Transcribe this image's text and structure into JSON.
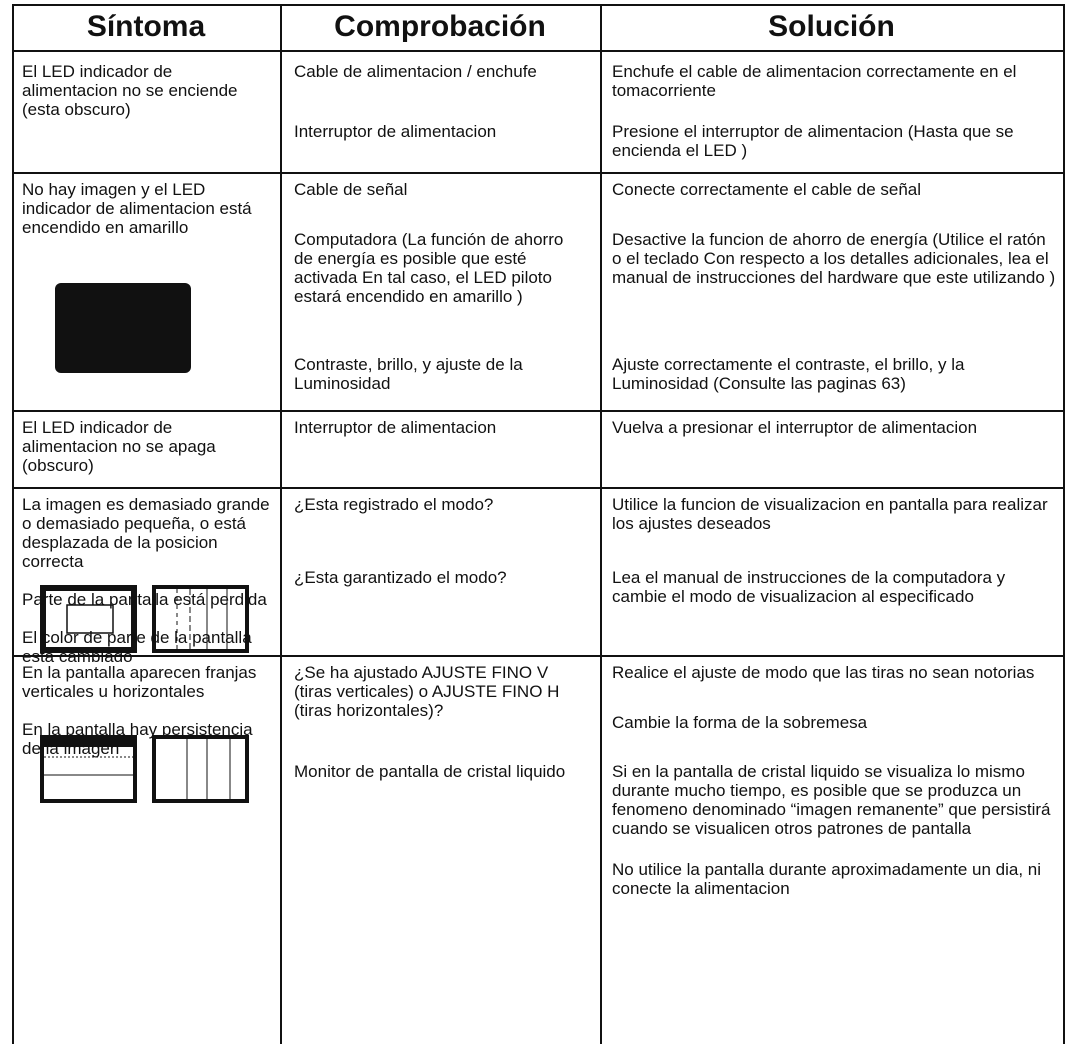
{
  "table": {
    "headers": [
      "Síntoma",
      "Comprobación",
      "Solución"
    ],
    "rows": [
      {
        "symptom": [
          "El LED indicador de alimentacion no se enciende (esta obscuro)"
        ],
        "checks": [
          "Cable de alimentacion / enchufe",
          "Interruptor de alimentacion"
        ],
        "solutions": [
          "Enchufe el cable de alimentacion correctamente en el tomacorriente",
          "Presione el interruptor de alimentacion  (Hasta que se encienda el LED )"
        ]
      },
      {
        "symptom": [
          "No hay imagen y el LED indicador de alimentacion está encendido en amarillo"
        ],
        "checks": [
          "Cable de señal",
          "Computadora  (La función de ahorro de energía es posible que esté activada  En tal caso, el LED piloto estará encendido en amarillo )",
          "Contraste, brillo, y ajuste de la Luminosidad"
        ],
        "solutions": [
          "Conecte correctamente el cable de señal",
          "Desactive la funcion de ahorro de energía (Utilice el ratón o el teclado  Con respecto a los detalles adicionales, lea el manual de instrucciones del hardware que este utilizando )",
          "Ajuste correctamente el contraste, el brillo, y la Luminosidad (Consulte las paginas 63)"
        ]
      },
      {
        "symptom": [
          "El LED indicador de alimentacion no se apaga (obscuro)"
        ],
        "checks": [
          "Interruptor de alimentacion"
        ],
        "solutions": [
          "Vuelva a presionar el interruptor de alimentacion"
        ]
      },
      {
        "symptom": [
          "La imagen es demasiado grande o demasiado pequeña, o está desplazada de la posicion correcta",
          "Parte de la pantalla está perdida",
          "El color de parte de la pantalla esta cambiado"
        ],
        "checks": [
          "¿Esta registrado el modo?",
          "¿Esta garantizado el modo?"
        ],
        "solutions": [
          "Utilice la funcion de visualizacion en pantalla para realizar los ajustes deseados",
          "Lea el manual de instrucciones de la computadora y cambie el modo de visualizacion al especificado"
        ]
      },
      {
        "symptom": [
          "En la pantalla aparecen franjas verticales u horizontales",
          "En la pantalla hay persistencia de la imagen"
        ],
        "checks": [
          "¿Se ha ajustado AJUSTE FINO V  (tiras verticales) o AJUSTE FINO H  (tiras horizontales)?",
          "Monitor de pantalla de cristal liquido"
        ],
        "solutions": [
          "Realice el ajuste de modo que las tiras no sean notorias",
          "Cambie la forma de la sobremesa",
          "Si en la pantalla de cristal liquido se visualiza lo mismo durante mucho tiempo, es posible que se produzca un fenomeno denominado “imagen remanente” que persistirá cuando se visualicen otros patrones de pantalla",
          "No utilice la pantalla durante aproximadamente un dia, ni conecte la alimentacion"
        ]
      }
    ]
  }
}
